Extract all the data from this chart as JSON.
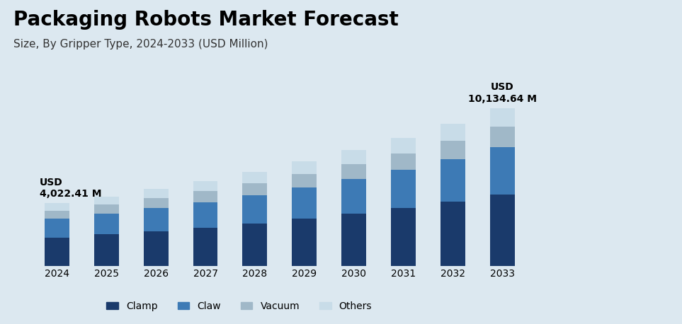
{
  "title": "Packaging Robots Market Forecast",
  "subtitle": "Size, By Gripper Type, 2024-2033 (USD Million)",
  "years": [
    2024,
    2025,
    2026,
    2027,
    2028,
    2029,
    2030,
    2031,
    2032,
    2033
  ],
  "first_label": "USD\n4,022.41 M",
  "last_label": "USD\n10,134.64 M",
  "totals": [
    4022.41,
    4454.14,
    4931.64,
    5461.0,
    6047.63,
    6698.06,
    7419.29,
    8219.03,
    9105.98,
    10134.64
  ],
  "segments": {
    "Clamp": [
      1810.0,
      2004.4,
      2219.2,
      2457.5,
      2721.4,
      3014.1,
      3338.7,
      3698.6,
      4097.7,
      4560.6
    ],
    "Claw": [
      1206.7,
      1336.2,
      1479.5,
      1638.3,
      1814.3,
      2009.4,
      2225.8,
      2465.7,
      2731.8,
      3040.4
    ],
    "Vacuum": [
      522.9,
      579.0,
      641.5,
      710.9,
      787.0,
      871.7,
      965.5,
      1068.5,
      1183.8,
      1317.5
    ],
    "Others": [
      482.8,
      534.5,
      591.4,
      654.3,
      724.9,
      802.9,
      889.3,
      986.2,
      1092.7,
      1216.1
    ]
  },
  "colors": {
    "Clamp": "#1a3a6b",
    "Claw": "#3d7ab5",
    "Vacuum": "#a0b8c8",
    "Others": "#c8dce8"
  },
  "background_color": "#dce8f0",
  "plot_bg_color": "#dce8f0",
  "title_fontsize": 20,
  "subtitle_fontsize": 11,
  "tick_fontsize": 10,
  "legend_fontsize": 10,
  "annotation_fontsize": 10
}
